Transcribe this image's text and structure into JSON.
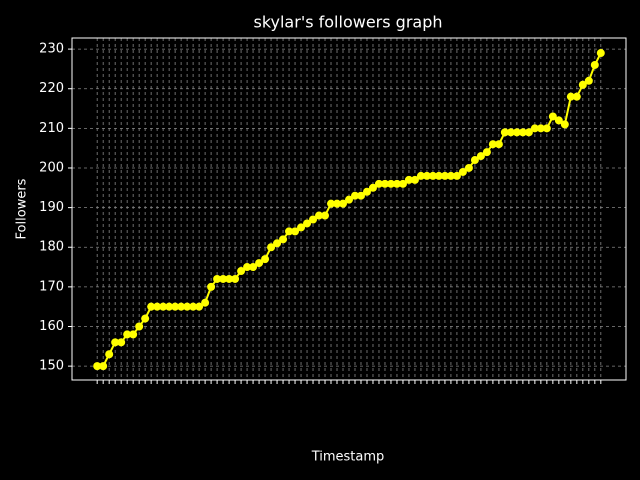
{
  "chart_data": {
    "type": "line",
    "title": "skylar's followers graph",
    "xlabel": "Timestamp",
    "ylabel": "Followers",
    "categories": [
      null,
      null,
      null,
      null,
      null,
      null,
      null,
      null,
      null,
      null,
      null,
      null,
      null,
      null,
      null,
      null,
      null,
      null,
      null,
      null,
      null,
      null,
      null,
      null,
      null,
      null,
      null,
      null,
      null,
      null,
      null,
      null,
      null,
      null,
      null,
      null,
      null,
      null,
      null,
      null,
      null,
      null,
      null,
      null,
      null,
      null,
      null,
      null,
      null,
      null,
      null,
      null,
      null,
      null,
      null,
      null,
      null,
      null,
      null,
      null,
      null,
      null,
      null,
      null,
      null,
      null,
      null,
      null,
      null,
      null,
      null,
      null,
      null,
      null,
      null,
      null,
      null,
      null,
      null,
      null,
      null,
      null,
      null,
      null,
      null
    ],
    "series": [
      {
        "name": "followers",
        "color": "#ffff00",
        "values": [
          150,
          150,
          153,
          156,
          156,
          158,
          158,
          160,
          162,
          165,
          165,
          165,
          165,
          165,
          165,
          165,
          165,
          165,
          166,
          170,
          172,
          172,
          172,
          172,
          174,
          175,
          175,
          176,
          177,
          180,
          181,
          182,
          184,
          184,
          185,
          186,
          187,
          188,
          188,
          191,
          191,
          191,
          192,
          193,
          193,
          194,
          195,
          196,
          196,
          196,
          196,
          196,
          197,
          197,
          198,
          198,
          198,
          198,
          198,
          198,
          198,
          199,
          200,
          202,
          203,
          204,
          206,
          206,
          209,
          209,
          209,
          209,
          209,
          210,
          210,
          210,
          213,
          212,
          211,
          218,
          218,
          221,
          222,
          226,
          229
        ]
      }
    ],
    "ylim": [
      146.5,
      232.8
    ],
    "yticks": [
      150,
      160,
      170,
      180,
      190,
      200,
      210,
      220,
      230
    ],
    "grid": true
  }
}
